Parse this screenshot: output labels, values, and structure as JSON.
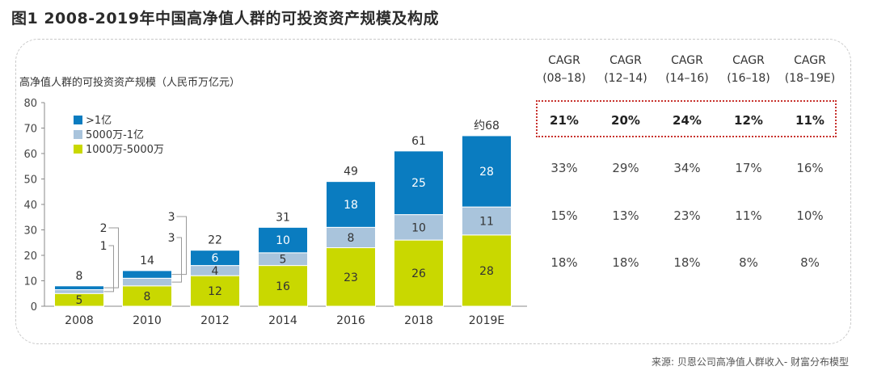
{
  "title": "图1  2008-2019年中国高净值人群的可投资资产规模及构成",
  "source": "来源: 贝恩公司高净值人群收入- 财富分布模型",
  "colors": {
    "top": "#0a7cc0",
    "mid": "#a9c4dc",
    "base": "#c9d800",
    "axis": "#888888",
    "highlight": "#c8322d"
  },
  "chart_data": {
    "type": "bar",
    "stacked": true,
    "title": "高净值人群的可投资资产规模（人民币万亿元）",
    "categories": [
      "2008",
      "2010",
      "2012",
      "2014",
      "2016",
      "2018",
      "2019E"
    ],
    "series": [
      {
        "name": "1000万-5000万",
        "values": [
          5,
          8,
          12,
          16,
          23,
          26,
          28
        ],
        "labels": [
          "5",
          "8",
          "12",
          "16",
          "23",
          "26",
          "28"
        ]
      },
      {
        "name": "5000万-1亿",
        "values": [
          1.5,
          3,
          4,
          5,
          8,
          10,
          11
        ],
        "labels": [
          "",
          "",
          "4",
          "5",
          "8",
          "10",
          "11"
        ]
      },
      {
        "name": ">1亿",
        "values": [
          1.5,
          3,
          6,
          10,
          18,
          25,
          28
        ],
        "labels": [
          "",
          "",
          "6",
          "10",
          "18",
          "25",
          "28"
        ]
      }
    ],
    "totals": [
      "8",
      "14",
      "22",
      "31",
      "49",
      "61",
      "约68"
    ],
    "callouts": [
      {
        "category": "2008",
        "upper": "2",
        "lower": "1"
      },
      {
        "category": "2010",
        "upper": "3",
        "lower": "3"
      }
    ],
    "ylim": [
      0,
      80
    ],
    "yticks": [
      "0",
      "10",
      "20",
      "30",
      "40",
      "50",
      "60",
      "70",
      "80"
    ],
    "legend": [
      ">1亿",
      "5000万-1亿",
      "1000万-5000万"
    ]
  },
  "cagr_table": {
    "headers": [
      {
        "line1": "CAGR",
        "line2": "(08–18)"
      },
      {
        "line1": "CAGR",
        "line2": "(12–14)"
      },
      {
        "line1": "CAGR",
        "line2": "(14–16)"
      },
      {
        "line1": "CAGR",
        "line2": "(16–18)"
      },
      {
        "line1": "CAGR",
        "line2": "(18–19E)"
      }
    ],
    "rows": [
      {
        "name": "total",
        "values": [
          "21%",
          "20%",
          "24%",
          "12%",
          "11%"
        ]
      },
      {
        "name": "over-100m",
        "values": [
          "33%",
          "29%",
          "34%",
          "17%",
          "16%"
        ]
      },
      {
        "name": "50m-100m",
        "values": [
          "15%",
          "13%",
          "23%",
          "11%",
          "10%"
        ]
      },
      {
        "name": "10m-50m",
        "values": [
          "18%",
          "18%",
          "18%",
          "8%",
          "8%"
        ]
      }
    ]
  }
}
